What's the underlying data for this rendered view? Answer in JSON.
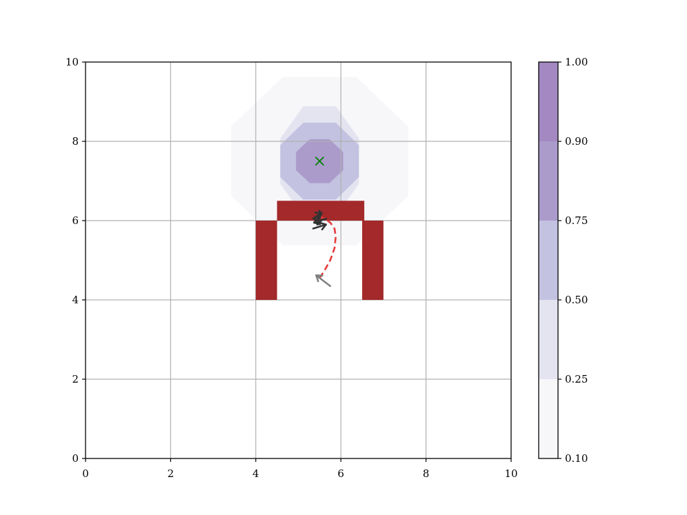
{
  "chart_data": {
    "type": "heatmap",
    "title": "",
    "xlabel": "",
    "ylabel": "",
    "xlim": [
      0,
      10
    ],
    "ylim": [
      0,
      10
    ],
    "xticks": [
      "0",
      "2",
      "4",
      "6",
      "8",
      "10"
    ],
    "yticks": [
      "0",
      "2",
      "4",
      "6",
      "8",
      "10"
    ],
    "grid": true,
    "colormap": "Purples",
    "contour_center": [
      5.5,
      7.5
    ],
    "contour_levels": [
      0.1,
      0.25,
      0.5,
      0.75,
      0.9,
      1.0
    ],
    "level_colors": [
      "#f7f7fa",
      "#e4e3f0",
      "#c3c2e1",
      "#ab9bcb",
      "#a388c2"
    ],
    "contour_extents": [
      {
        "level": 0.1,
        "radius_x": 2.25,
        "radius_y": 2.3
      },
      {
        "level": 0.25,
        "radius_x": 1.0,
        "radius_y": 1.5
      },
      {
        "level": 0.5,
        "radius_x": 1.0,
        "radius_y": 1.05
      },
      {
        "level": 0.75,
        "radius_x": 0.6,
        "radius_y": 0.6
      }
    ],
    "obstacles": [
      {
        "x0": 4.5,
        "y0": 6.0,
        "x1": 6.55,
        "y1": 6.5,
        "color": "#a3292a"
      },
      {
        "x0": 4.0,
        "y0": 4.0,
        "x1": 4.5,
        "y1": 6.0,
        "color": "#a3292a"
      },
      {
        "x0": 6.5,
        "y0": 4.0,
        "x1": 7.0,
        "y1": 6.0,
        "color": "#a3292a"
      }
    ],
    "goal": {
      "x": 5.5,
      "y": 7.5,
      "marker": "x",
      "color": "#008000"
    },
    "trajectory": {
      "style": "dashed",
      "color": "#e83a3a",
      "x": [
        5.5,
        5.62,
        5.75,
        5.85,
        5.88,
        5.85,
        5.75,
        5.62,
        5.5
      ],
      "y": [
        4.55,
        4.75,
        5.0,
        5.3,
        5.6,
        5.8,
        5.95,
        6.05,
        6.1
      ]
    },
    "arrows": [
      {
        "x": 5.75,
        "y": 4.35,
        "dx": -0.33,
        "dy": 0.27,
        "color": "#808080"
      },
      {
        "x": 5.35,
        "y": 6.05,
        "dx": 0.2,
        "dy": 0.15,
        "color": "#333333"
      },
      {
        "x": 5.5,
        "y": 6.25,
        "dx": -0.05,
        "dy": -0.35,
        "color": "#333333"
      },
      {
        "x": 5.65,
        "y": 6.05,
        "dx": -0.28,
        "dy": -0.1,
        "color": "#333333"
      },
      {
        "x": 5.35,
        "y": 5.8,
        "dx": 0.3,
        "dy": 0.1,
        "color": "#333333"
      }
    ],
    "colorbar": {
      "ticks": [
        "0.10",
        "0.25",
        "0.50",
        "0.75",
        "0.90",
        "1.00"
      ]
    }
  }
}
